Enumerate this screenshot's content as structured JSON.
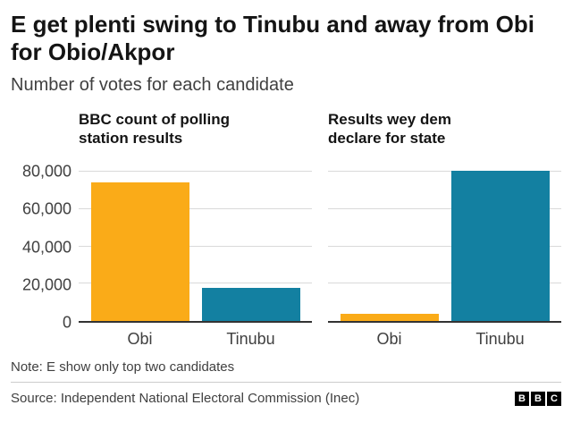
{
  "header": {
    "title": "E get plenti swing to Tinubu and away from Obi for Obio/Akpor",
    "title_lines": [
      "E get plenti swing to Tinubu and away from Obi",
      "for Obio/Akpor"
    ],
    "subtitle": "Number of votes for each candidate"
  },
  "chart_data": [
    {
      "type": "bar",
      "title": "BBC count of polling station results",
      "title_lines": [
        "BBC count of polling",
        "station results"
      ],
      "categories": [
        "Obi",
        "Tinubu"
      ],
      "values": [
        74000,
        18000
      ],
      "ylim": [
        0,
        84000
      ],
      "yticks": [
        0,
        20000,
        40000,
        60000,
        80000
      ],
      "ytick_labels": [
        "0",
        "20,000",
        "40,000",
        "60,000",
        "80,000"
      ],
      "bar_colors": [
        "#FAAB18",
        "#1380A1"
      ],
      "grid": "horizontal",
      "legend": "none",
      "xlabel": "",
      "ylabel": ""
    },
    {
      "type": "bar",
      "title": "Results wey dem declare for state",
      "title_lines": [
        "Results wey dem",
        "declare for state"
      ],
      "categories": [
        "Obi",
        "Tinubu"
      ],
      "values": [
        4000,
        80500
      ],
      "ylim": [
        0,
        84000
      ],
      "yticks": [
        0,
        20000,
        40000,
        60000,
        80000
      ],
      "ytick_labels": [
        "0",
        "20,000",
        "40,000",
        "60,000",
        "80,000"
      ],
      "bar_colors": [
        "#FAAB18",
        "#1380A1"
      ],
      "grid": "horizontal",
      "legend": "none",
      "xlabel": "",
      "ylabel": ""
    }
  ],
  "colors": {
    "obi_orange": "#FAAB18",
    "tinubu_teal": "#1380A1",
    "axis": "#333333",
    "gridline": "#d9d9d9",
    "text_primary": "#141414",
    "text_secondary": "#404040"
  },
  "footer": {
    "note": "Note: E show only top two candidates",
    "source": "Source: Independent National Electoral Commission (Inec)",
    "logo_letters": [
      "B",
      "B",
      "C"
    ]
  }
}
